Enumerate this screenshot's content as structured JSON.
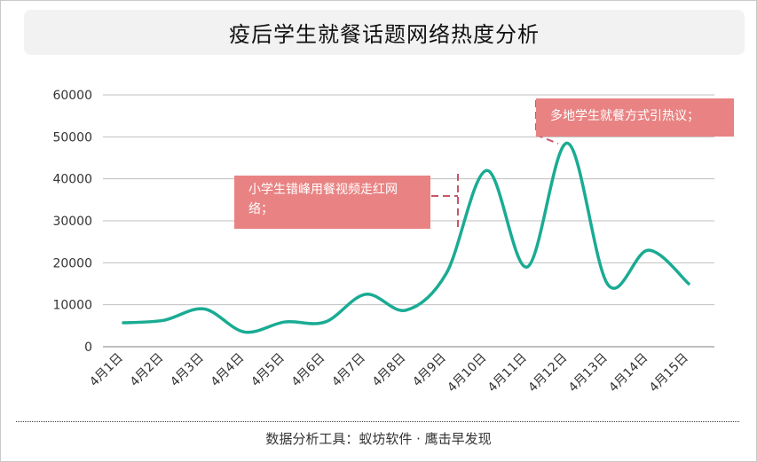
{
  "title": "疫后学生就餐话题网络热度分析",
  "footer": "数据分析工具：蚁坊软件 · 鹰击早发现",
  "colors": {
    "line": "#1aab93",
    "grid": "#bfbfbf",
    "callout_bg": "#e98383",
    "callout_border": "#c9566a"
  },
  "annotations": [
    {
      "text": "小学生错峰用餐视频走红网络；",
      "x": "4月10日"
    },
    {
      "text": "多地学生就餐方式引热议；",
      "x": "4月12日"
    }
  ],
  "chart_data": {
    "type": "line",
    "categories": [
      "4月1日",
      "4月2日",
      "4月3日",
      "4月4日",
      "4月5日",
      "4月6日",
      "4月7日",
      "4月8日",
      "4月9日",
      "4月10日",
      "4月11日",
      "4月12日",
      "4月13日",
      "4月14日",
      "4月15日"
    ],
    "series": [
      {
        "values": [
          5700,
          6300,
          9000,
          3500,
          5900,
          5900,
          12500,
          8700,
          17500,
          42000,
          19000,
          48500,
          14800,
          23000,
          15000
        ]
      }
    ],
    "ylim": [
      0,
      60000
    ],
    "yticks": [
      0,
      10000,
      20000,
      30000,
      40000,
      50000,
      60000
    ],
    "grid": true,
    "legend": "none",
    "smooth": true
  }
}
